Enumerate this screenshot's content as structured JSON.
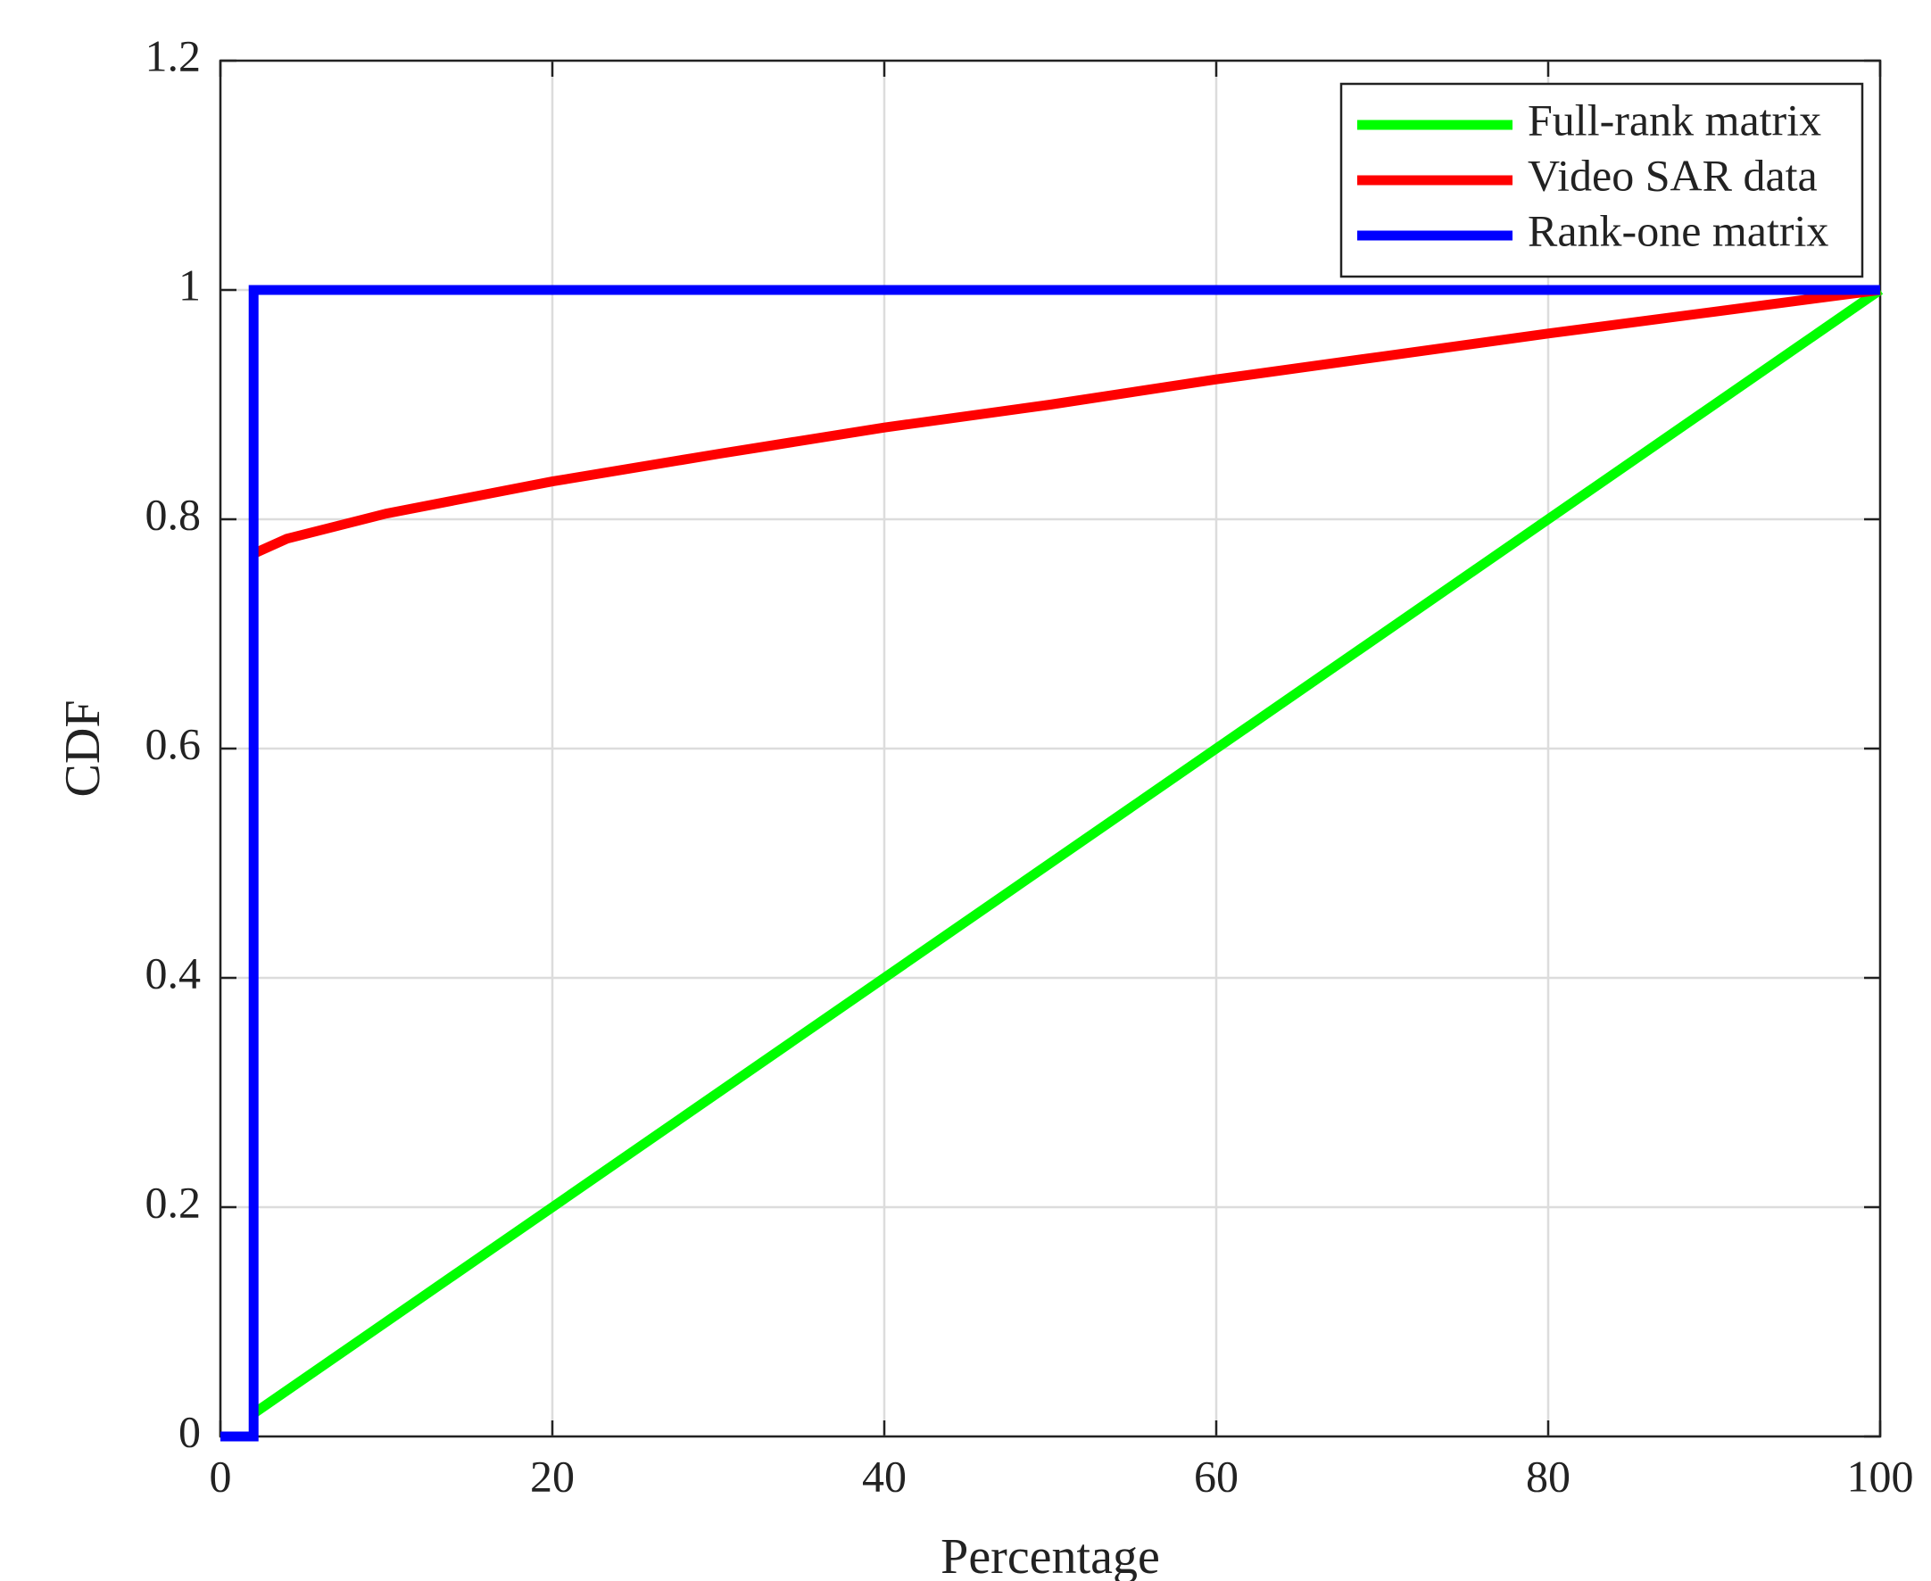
{
  "chart_data": {
    "type": "line",
    "xlabel": "Percentage",
    "ylabel": "CDF",
    "xlim": [
      0,
      100
    ],
    "ylim": [
      0,
      1.2
    ],
    "xticks": [
      0,
      20,
      40,
      60,
      80,
      100
    ],
    "yticks": [
      0,
      0.2,
      0.4,
      0.6,
      0.8,
      1,
      1.2
    ],
    "grid": true,
    "legend": "upper-right",
    "series": [
      {
        "name": "Full-rank matrix",
        "color": "#00ff00",
        "x": [
          2,
          100
        ],
        "values": [
          0.02,
          1
        ]
      },
      {
        "name": "Video SAR data",
        "color": "#ff0000",
        "x": [
          2,
          4,
          10,
          20,
          30,
          40,
          50,
          60,
          70,
          80,
          90,
          100
        ],
        "values": [
          0.77,
          0.783,
          0.805,
          0.833,
          0.857,
          0.88,
          0.9,
          0.922,
          0.942,
          0.962,
          0.981,
          1
        ]
      },
      {
        "name": "Rank-one matrix",
        "color": "#0000ff",
        "x": [
          0,
          2,
          2,
          100
        ],
        "values": [
          0,
          0,
          1,
          1
        ]
      }
    ]
  }
}
